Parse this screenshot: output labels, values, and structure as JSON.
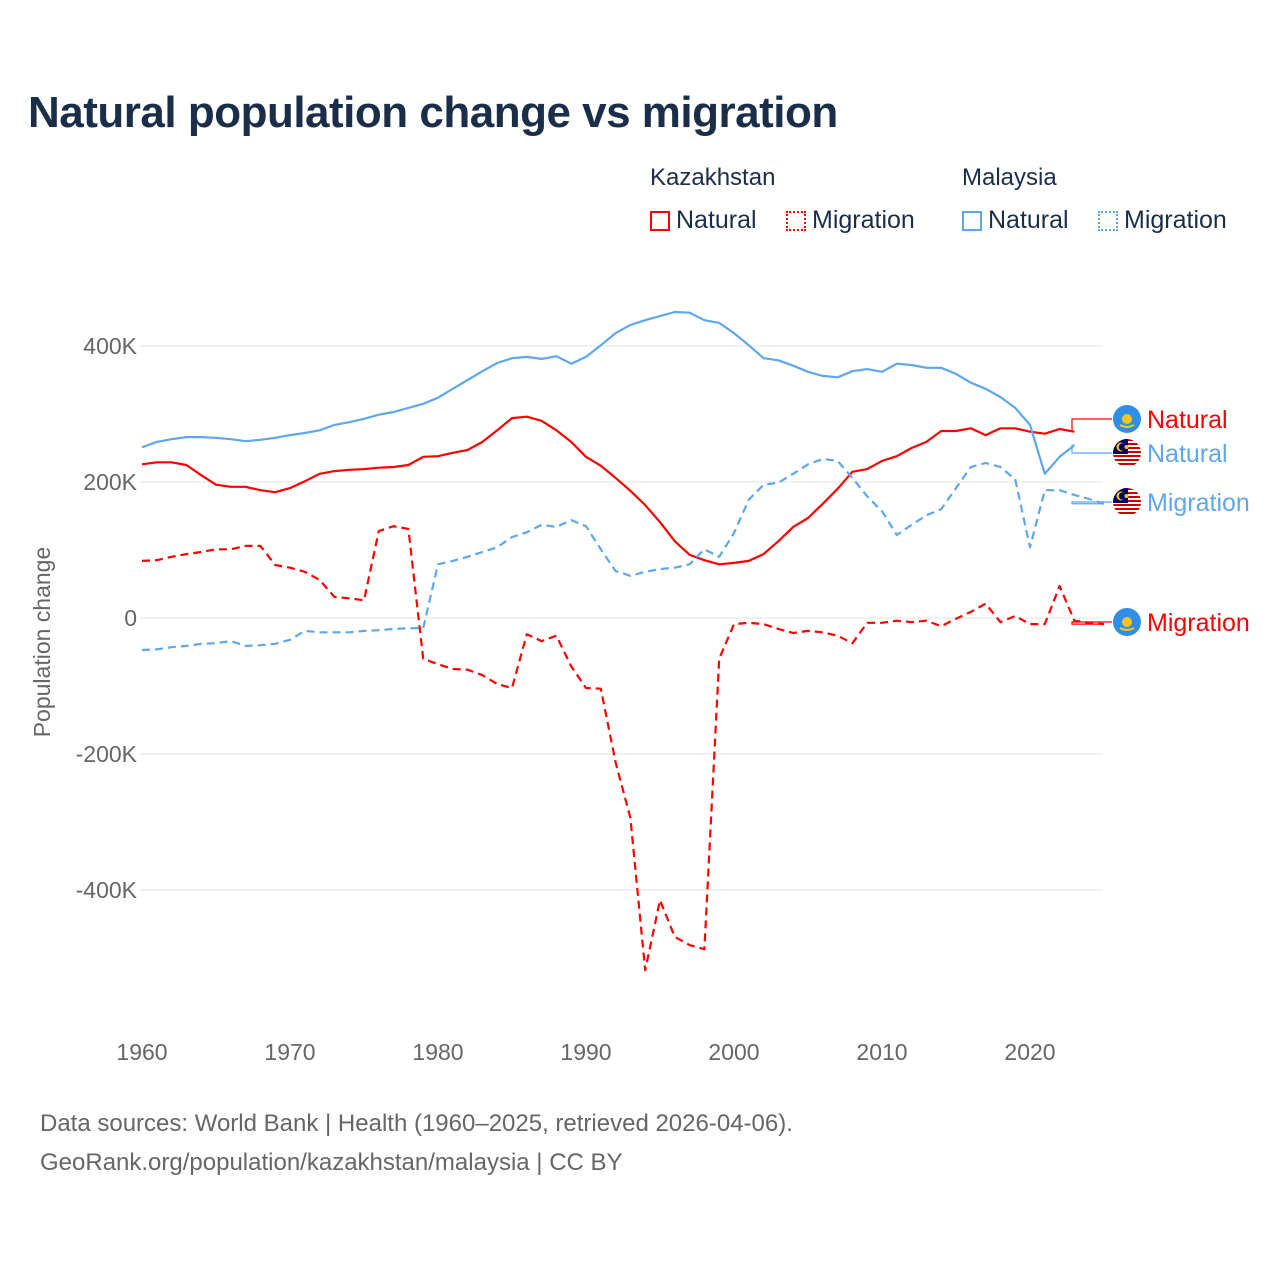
{
  "chart_data": {
    "type": "line",
    "title": "Natural population change vs migration",
    "xlabel": "",
    "ylabel": "Population change",
    "xlim": [
      1960,
      2025
    ],
    "ylim": [
      -550,
      480
    ],
    "y_unit": "thousands",
    "yticks": [
      {
        "v": 400,
        "label": "400K"
      },
      {
        "v": 200,
        "label": "200K"
      },
      {
        "v": 0,
        "label": "0"
      },
      {
        "v": -200,
        "label": "-200K"
      },
      {
        "v": -400,
        "label": "-400K"
      }
    ],
    "xticks": [
      1960,
      1970,
      1980,
      1990,
      2000,
      2010,
      2020
    ],
    "grid": true,
    "legend_position": "top-right",
    "legend": {
      "groups": [
        {
          "name": "Kazakhstan",
          "items": [
            "Natural",
            "Migration"
          ]
        },
        {
          "name": "Malaysia",
          "items": [
            "Natural",
            "Migration"
          ]
        }
      ]
    },
    "series": [
      {
        "name": "Natural",
        "country": "Kazakhstan",
        "color": "#ff0000",
        "dash": false,
        "flag": "kazakhstan-flag",
        "start": 1960,
        "values": [
          226,
          229,
          229,
          225,
          210,
          196,
          193,
          193,
          188,
          185,
          191,
          201,
          212,
          216,
          218,
          219,
          221,
          222,
          225,
          237,
          238,
          243,
          247,
          259,
          276,
          294,
          296,
          290,
          276,
          259,
          237,
          224,
          206,
          187,
          166,
          141,
          113,
          93,
          85,
          79,
          81,
          84,
          94,
          113,
          134,
          147,
          168,
          190,
          215,
          219,
          231,
          238,
          250,
          259,
          275,
          275,
          279,
          269,
          279,
          279,
          274,
          271,
          278,
          274
        ]
      },
      {
        "name": "Natural",
        "country": "Malaysia",
        "color": "#5ea7ee",
        "dash": false,
        "flag": "malaysia-flag",
        "start": 1960,
        "values": [
          251,
          259,
          263,
          266,
          266,
          265,
          263,
          260,
          262,
          265,
          269,
          272,
          276,
          284,
          288,
          293,
          299,
          303,
          309,
          315,
          324,
          337,
          350,
          363,
          375,
          382,
          384,
          381,
          385,
          374,
          384,
          401,
          419,
          431,
          438,
          444,
          450,
          449,
          438,
          434,
          419,
          401,
          382,
          379,
          371,
          362,
          356,
          354,
          363,
          366,
          362,
          374,
          372,
          368,
          368,
          359,
          346,
          337,
          325,
          309,
          284,
          212,
          237,
          254
        ]
      },
      {
        "name": "Migration",
        "country": "Malaysia",
        "color": "#5ea7ee",
        "dash": true,
        "flag": "malaysia-flag",
        "start": 1960,
        "values": [
          -47,
          -46,
          -43,
          -41,
          -38,
          -37,
          -34,
          -41,
          -40,
          -38,
          -32,
          -19,
          -21,
          -21,
          -21,
          -19,
          -18,
          -16,
          -15,
          -15,
          79,
          84,
          90,
          97,
          104,
          119,
          126,
          137,
          134,
          144,
          135,
          101,
          69,
          62,
          68,
          72,
          74,
          79,
          101,
          90,
          125,
          174,
          196,
          199,
          212,
          226,
          234,
          231,
          206,
          179,
          157,
          122,
          137,
          151,
          160,
          191,
          222,
          228,
          222,
          204,
          104,
          188,
          188,
          181,
          175,
          168
        ]
      },
      {
        "name": "Migration",
        "country": "Kazakhstan",
        "color": "#ff0000",
        "dash": true,
        "flag": "kazakhstan-flag",
        "start": 1960,
        "values": [
          84,
          85,
          90,
          94,
          97,
          101,
          101,
          106,
          106,
          78,
          74,
          68,
          56,
          31,
          29,
          26,
          128,
          135,
          131,
          -60,
          -68,
          -75,
          -76,
          -84,
          -97,
          -103,
          -24,
          -34,
          -26,
          -71,
          -103,
          -104,
          -212,
          -294,
          -518,
          -415,
          -469,
          -481,
          -487,
          -60,
          -9,
          -7,
          -9,
          -16,
          -22,
          -19,
          -21,
          -26,
          -37,
          -7,
          -7,
          -4,
          -6,
          -4,
          -12,
          -1,
          9,
          21,
          -6,
          3,
          -9,
          -9,
          47,
          -4,
          -7,
          -9
        ]
      }
    ]
  },
  "footer": {
    "line1": "Data sources: World Bank | Health (1960–2025, retrieved 2026-04-06).",
    "line2": "GeoRank.org/population/kazakhstan/malaysia | CC BY"
  }
}
